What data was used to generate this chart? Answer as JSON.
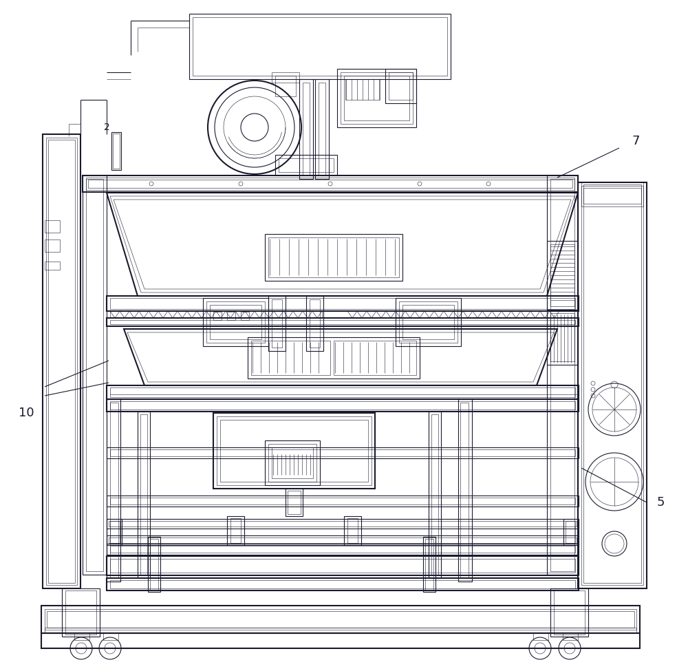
{
  "bg_color": "#ffffff",
  "line_color": "#1a1a2e",
  "lw": 0.8,
  "lw_t": 0.4,
  "lw_T": 1.5,
  "label_7": "7",
  "label_10": "10",
  "label_5": "5",
  "label_2": "2",
  "figsize": [
    10.0,
    9.75
  ]
}
